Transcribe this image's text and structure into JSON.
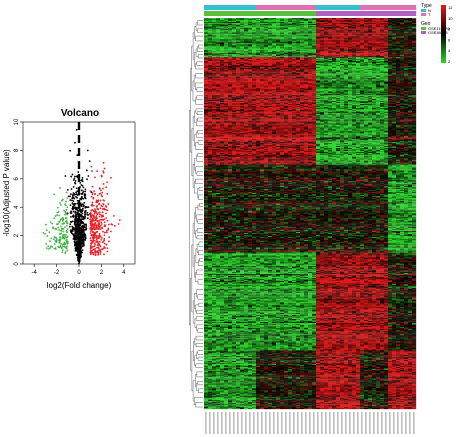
{
  "chart_data": [
    {
      "type": "scatter",
      "title": "Volcano",
      "xlabel": "log2(Fold change)",
      "ylabel": "-log10(Adjusted P value)",
      "xlim": [
        -5,
        5
      ],
      "ylim": [
        0,
        10
      ],
      "xticks": [
        -4,
        -2,
        0,
        2,
        4
      ],
      "yticks": [
        0,
        2,
        4,
        6,
        8,
        10
      ],
      "xtick_labels": [
        "-4",
        "-2",
        "0",
        "2",
        "4"
      ],
      "ytick_labels": [
        "0",
        "2",
        "4",
        "6",
        "8",
        "10"
      ],
      "threshold_line": {
        "x": 0,
        "style": "dashed"
      },
      "colors": {
        "up": "#e8242b",
        "down": "#3fb33f",
        "ns": "#000000"
      },
      "series": [
        {
          "color_key": "ns",
          "points": []
        },
        {
          "color_key": "up",
          "points": []
        },
        {
          "color_key": "down",
          "points": []
        }
      ]
    },
    {
      "type": "heatmap",
      "color_scale": {
        "low": "#2fd62f",
        "mid": "#000000",
        "high": "#e01b1b"
      },
      "legend": {
        "type_title": "Type",
        "type_entries": [
          "N",
          "T"
        ],
        "type_colors": [
          "#33c0d0",
          "#e070b0"
        ],
        "geo_title": "Geo",
        "geo_entries": [
          "GSE116370",
          "GSE89548"
        ],
        "geo_colors": [
          "#5bbf40",
          "#b060c0"
        ],
        "scale_ticks": [
          "12",
          "10",
          "8",
          "6",
          "4",
          "2"
        ]
      },
      "column_annotations": {
        "type": [
          "N",
          "N",
          "N",
          "N",
          "N",
          "N",
          "N",
          "N",
          "N",
          "N",
          "N",
          "N",
          "N",
          "T",
          "T",
          "T",
          "T",
          "T",
          "T",
          "T",
          "T",
          "T",
          "T",
          "T",
          "T",
          "T",
          "T",
          "T",
          "N",
          "N",
          "N",
          "N",
          "N",
          "N",
          "N",
          "N",
          "N",
          "N",
          "N",
          "T",
          "T",
          "T",
          "T",
          "T",
          "T",
          "T",
          "T",
          "T",
          "T",
          "T",
          "T",
          "T",
          "T"
        ],
        "geo": [
          "GSE116370",
          "GSE116370",
          "GSE116370",
          "GSE116370",
          "GSE116370",
          "GSE116370",
          "GSE116370",
          "GSE116370",
          "GSE116370",
          "GSE116370",
          "GSE116370",
          "GSE116370",
          "GSE116370",
          "GSE116370",
          "GSE116370",
          "GSE116370",
          "GSE116370",
          "GSE116370",
          "GSE116370",
          "GSE116370",
          "GSE116370",
          "GSE116370",
          "GSE116370",
          "GSE116370",
          "GSE116370",
          "GSE116370",
          "GSE116370",
          "GSE116370",
          "GSE89548",
          "GSE89548",
          "GSE89548",
          "GSE89548",
          "GSE89548",
          "GSE89548",
          "GSE89548",
          "GSE89548",
          "GSE89548",
          "GSE89548",
          "GSE89548",
          "GSE89548",
          "GSE89548",
          "GSE89548",
          "GSE89548",
          "GSE89548",
          "GSE89548",
          "GSE89548",
          "GSE89548",
          "GSE89548",
          "GSE89548",
          "GSE89548",
          "GSE89548",
          "GSE89548",
          "GSE89548"
        ]
      },
      "row_blocks": [
        {
          "rows": 40,
          "pattern": [
            "low",
            "low",
            "high",
            "high",
            "mid"
          ]
        },
        {
          "rows": 110,
          "pattern": [
            "high",
            "high",
            "low",
            "low",
            "mid"
          ]
        },
        {
          "rows": 90,
          "pattern": [
            "mid",
            "mid",
            "mid",
            "mid",
            "low"
          ]
        },
        {
          "rows": 100,
          "pattern": [
            "low",
            "low",
            "high",
            "high",
            "mid"
          ]
        },
        {
          "rows": 60,
          "pattern": [
            "low",
            "mid",
            "high",
            "mid",
            "high"
          ]
        }
      ]
    }
  ]
}
